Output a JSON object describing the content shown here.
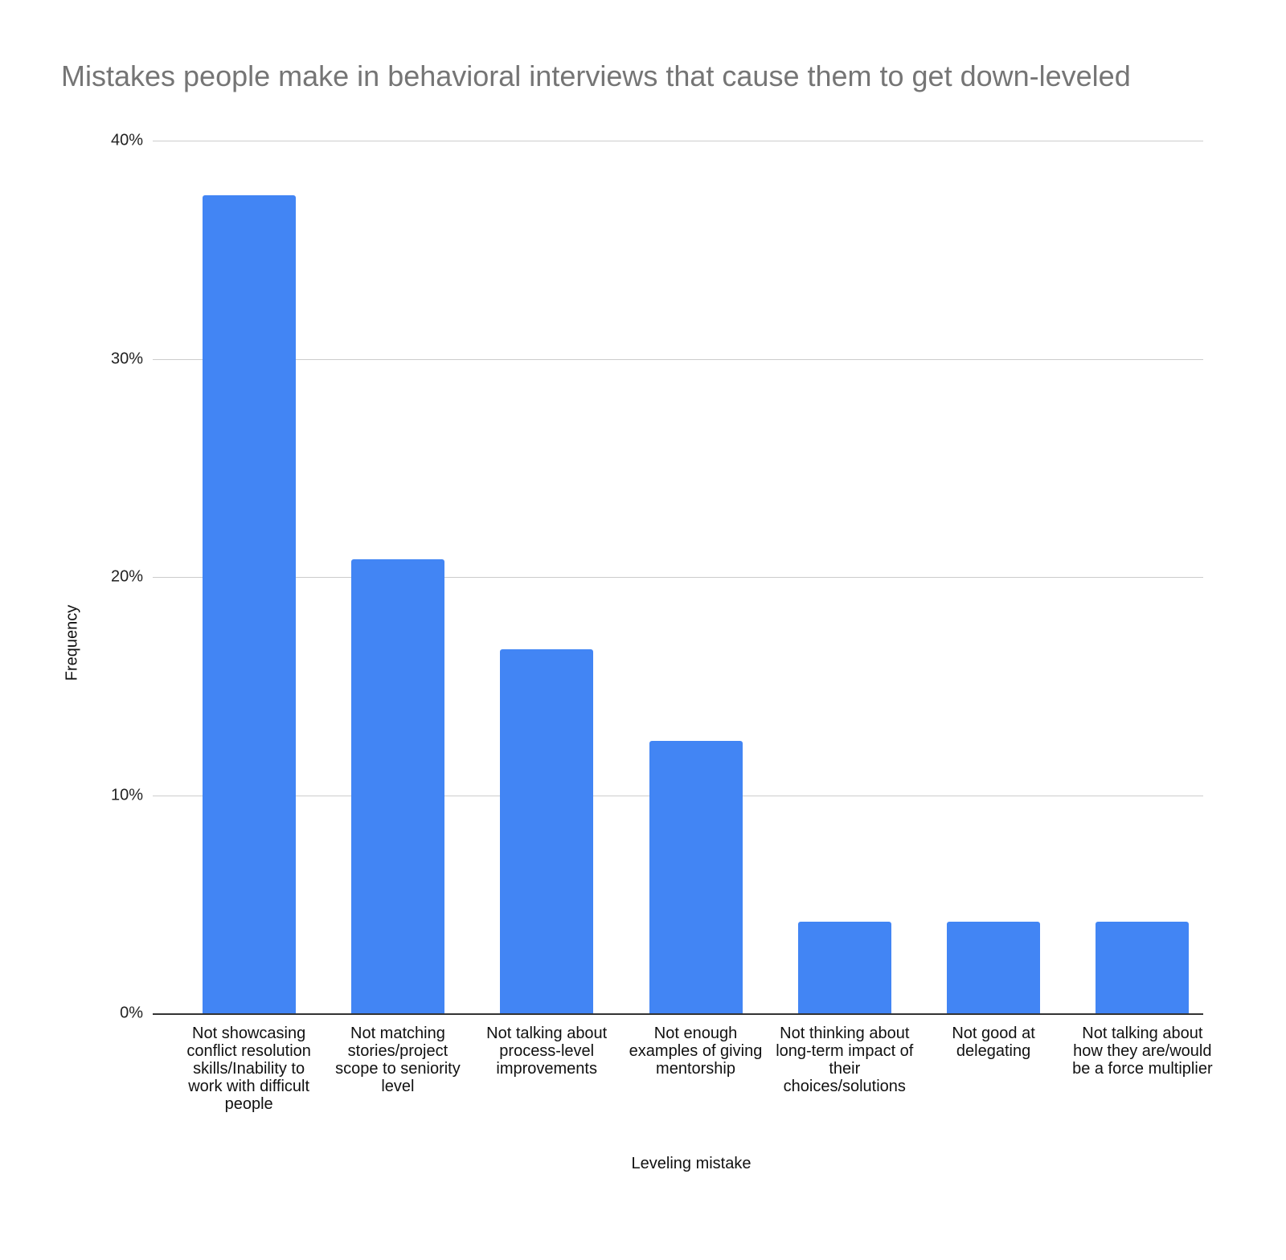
{
  "chart_data": {
    "type": "bar",
    "title": "Mistakes people make in behavioral interviews that cause them to get down-leveled",
    "xlabel": "Leveling mistake",
    "ylabel": "Frequency",
    "ylim": [
      0,
      40
    ],
    "yticks": [
      "0%",
      "10%",
      "20%",
      "30%",
      "40%"
    ],
    "grid": true,
    "legend": "none",
    "bar_color": "#4285f4",
    "categories": [
      "Not showcasing conflict resolution skills/Inability to work with difficult people",
      "Not matching stories/project scope to seniority level",
      "Not talking about process-level improvements",
      "Not enough examples of giving mentorship",
      "Not thinking about long-term impact of their choices/solutions",
      "Not good at delegating",
      "Not talking about how they are/would be a force multiplier"
    ],
    "values": [
      37.5,
      20.8,
      16.7,
      12.5,
      4.2,
      4.2,
      4.2
    ],
    "unit": "%"
  }
}
